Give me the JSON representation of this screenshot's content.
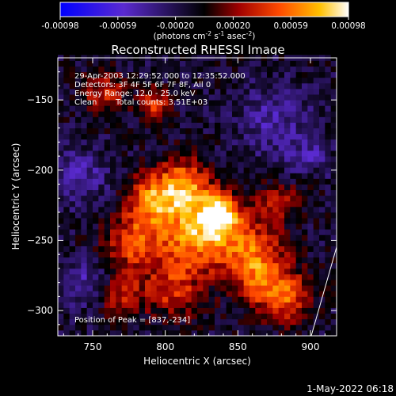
{
  "chart_data": {
    "type": "heatmap",
    "title": "Reconstructed RHESSI Image",
    "xlabel": "Heliocentric X (arcsec)",
    "ylabel": "Heliocentric Y (arcsec)",
    "xlim": [
      726,
      918
    ],
    "ylim": [
      -318,
      -120
    ],
    "xticks": [
      750,
      800,
      850,
      900
    ],
    "yticks": [
      -150,
      -200,
      -250,
      -300
    ],
    "colorbar": {
      "range": [
        -0.00098,
        0.00098
      ],
      "ticks": [
        "-0.00098",
        "-0.00059",
        "-0.00020",
        "0.00020",
        "0.00059",
        "0.00098"
      ],
      "label_main": "(photons cm",
      "sup1": "-2",
      "mid1": " s",
      "sup2": "-1",
      "mid2": " asec",
      "sup3": "-2",
      "tail": ")",
      "colormap": [
        "#0000ff",
        "#5a2ad0",
        "#000000",
        "#a00000",
        "#ff4a00",
        "#ffc000",
        "#ffffff"
      ]
    },
    "annotations": {
      "time": "29-Apr-2003 12:29:52.000 to 12:35:52.000",
      "detectors": "Detectors: 3F 4F 5F 6F 7F 8F, All 0",
      "energy": "Energy Range: 12.0 - 25.0 keV",
      "method": "Clean",
      "counts": "Total counts: 3.51E+03",
      "peak": "Position of Peak = [837,-234]"
    },
    "peak": [
      837,
      -234
    ],
    "sources": [
      {
        "x": 837,
        "y": -232,
        "amp": 1.0,
        "w": 10
      },
      {
        "x": 812,
        "y": -212,
        "amp": 0.8,
        "w": 14
      },
      {
        "x": 790,
        "y": -222,
        "amp": 0.65,
        "w": 12
      },
      {
        "x": 778,
        "y": -252,
        "amp": 0.6,
        "w": 14
      },
      {
        "x": 818,
        "y": -248,
        "amp": 0.75,
        "w": 16
      },
      {
        "x": 855,
        "y": -255,
        "amp": 0.6,
        "w": 16
      },
      {
        "x": 868,
        "y": -278,
        "amp": 0.55,
        "w": 14
      },
      {
        "x": 885,
        "y": -292,
        "amp": 0.5,
        "w": 12
      },
      {
        "x": 805,
        "y": -285,
        "amp": 0.5,
        "w": 14
      },
      {
        "x": 770,
        "y": -290,
        "amp": 0.45,
        "w": 10
      },
      {
        "x": 758,
        "y": -145,
        "amp": 0.5,
        "w": 10
      },
      {
        "x": 792,
        "y": -152,
        "amp": 0.6,
        "w": 7
      },
      {
        "x": 878,
        "y": -222,
        "amp": 0.4,
        "w": 10
      },
      {
        "x": 900,
        "y": -205,
        "amp": 0.3,
        "w": 6
      },
      {
        "x": 740,
        "y": -205,
        "amp": -0.35,
        "w": 14
      },
      {
        "x": 875,
        "y": -165,
        "amp": -0.3,
        "w": 18
      },
      {
        "x": 900,
        "y": -195,
        "amp": -0.35,
        "w": 10
      },
      {
        "x": 745,
        "y": -280,
        "amp": -0.3,
        "w": 12
      }
    ]
  },
  "footer": {
    "date": "1-May-2022 06:18"
  }
}
